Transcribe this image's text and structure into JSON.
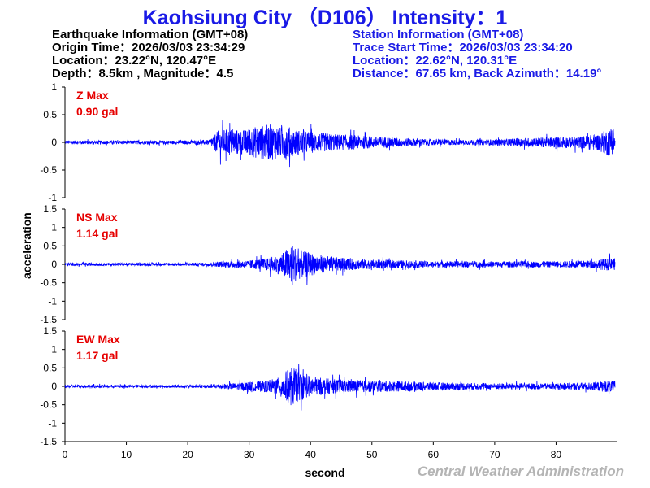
{
  "header": {
    "title": "Kaohsiung City （D106） Intensity：1"
  },
  "earthquake_info": {
    "heading": "Earthquake Information  (GMT+08)",
    "origin_time": "Origin Time：2026/03/03 23:34:29",
    "location": "Location：23.22°N, 120.47°E",
    "depth_magnitude": "Depth：8.5km , Magnitude：4.5"
  },
  "station_info": {
    "heading": "Station Information  (GMT+08)",
    "trace_start": "Trace Start Time：2026/03/03 23:34:20",
    "location": "Location：22.62°N, 120.31°E",
    "distance": "Distance：67.65 km, Back Azimuth：14.19°"
  },
  "footer": {
    "credit": "Central Weather Administration"
  },
  "colors": {
    "title": "#1a1ae6",
    "trace": "#0000ff",
    "max_label": "#e60000",
    "credit": "#b4b4b4"
  },
  "chart_data": {
    "type": "line",
    "xlabel": "second",
    "ylabel": "acceleration",
    "xlim": [
      0,
      90
    ],
    "xticks": [
      0,
      10,
      20,
      30,
      40,
      50,
      60,
      70,
      80
    ],
    "grid": false,
    "panels": [
      {
        "name": "Z",
        "max_label": "Z Max",
        "max_value": "0.90 gal",
        "ylim": [
          -1,
          1
        ],
        "yticks": [
          -1,
          -0.5,
          0,
          0.5,
          1
        ],
        "envelope": [
          [
            0,
            0.06
          ],
          [
            20,
            0.06
          ],
          [
            23.5,
            0.08
          ],
          [
            25,
            0.4
          ],
          [
            27,
            0.45
          ],
          [
            29,
            0.4
          ],
          [
            30.5,
            0.5
          ],
          [
            32,
            0.55
          ],
          [
            33.5,
            0.6
          ],
          [
            35,
            0.5
          ],
          [
            36,
            0.58
          ],
          [
            37,
            0.45
          ],
          [
            39,
            0.38
          ],
          [
            41,
            0.33
          ],
          [
            44,
            0.28
          ],
          [
            48,
            0.22
          ],
          [
            52,
            0.18
          ],
          [
            56,
            0.14
          ],
          [
            60,
            0.1
          ],
          [
            65,
            0.08
          ],
          [
            70,
            0.1
          ],
          [
            75,
            0.14
          ],
          [
            80,
            0.18
          ],
          [
            84,
            0.2
          ],
          [
            87,
            0.28
          ],
          [
            88.5,
            0.45
          ],
          [
            89.6,
            0.35
          ]
        ]
      },
      {
        "name": "NS",
        "max_label": "NS Max",
        "max_value": "1.14 gal",
        "ylim": [
          -1.5,
          1.5
        ],
        "yticks": [
          -1.5,
          -1,
          -0.5,
          0,
          0.5,
          1,
          1.5
        ],
        "envelope": [
          [
            0,
            0.07
          ],
          [
            20,
            0.07
          ],
          [
            24,
            0.1
          ],
          [
            26,
            0.15
          ],
          [
            30,
            0.2
          ],
          [
            33,
            0.32
          ],
          [
            35,
            0.5
          ],
          [
            36,
            0.75
          ],
          [
            37,
            1.0
          ],
          [
            38,
            0.75
          ],
          [
            39,
            0.65
          ],
          [
            41,
            0.5
          ],
          [
            44,
            0.35
          ],
          [
            48,
            0.25
          ],
          [
            55,
            0.2
          ],
          [
            60,
            0.15
          ],
          [
            70,
            0.15
          ],
          [
            80,
            0.15
          ],
          [
            86,
            0.2
          ],
          [
            88,
            0.3
          ],
          [
            89.6,
            0.3
          ]
        ]
      },
      {
        "name": "EW",
        "max_label": "EW Max",
        "max_value": "1.17 gal",
        "ylim": [
          -1.5,
          1.5
        ],
        "yticks": [
          -1.5,
          -1,
          -0.5,
          0,
          0.5,
          1,
          1.5
        ],
        "envelope": [
          [
            0,
            0.07
          ],
          [
            20,
            0.07
          ],
          [
            24,
            0.1
          ],
          [
            27,
            0.15
          ],
          [
            30,
            0.22
          ],
          [
            33,
            0.3
          ],
          [
            35,
            0.45
          ],
          [
            36,
            0.75
          ],
          [
            37,
            1.0
          ],
          [
            38,
            0.75
          ],
          [
            39,
            0.6
          ],
          [
            41,
            0.45
          ],
          [
            44,
            0.35
          ],
          [
            48,
            0.3
          ],
          [
            55,
            0.25
          ],
          [
            60,
            0.2
          ],
          [
            70,
            0.15
          ],
          [
            80,
            0.15
          ],
          [
            86,
            0.2
          ],
          [
            88,
            0.28
          ],
          [
            89.6,
            0.28
          ]
        ]
      }
    ]
  }
}
